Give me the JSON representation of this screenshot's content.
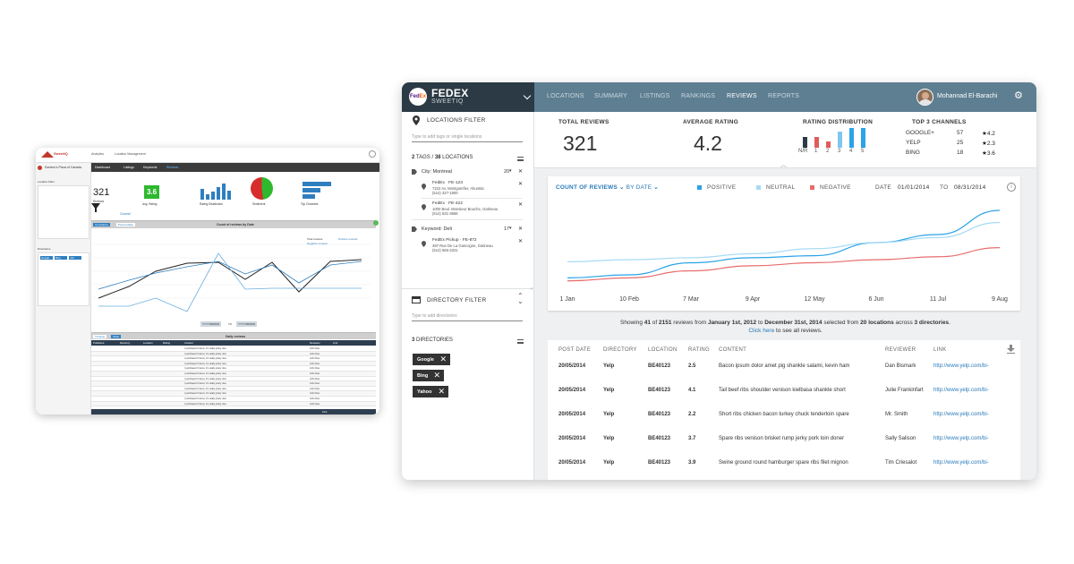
{
  "legacy": {
    "brand": "SweetIQ",
    "header_links": [
      "Analytics",
      "Location Management"
    ],
    "client_name": "Domino's Pizza of Canada",
    "nav": [
      "Dashboard",
      "Listings",
      "Keywords",
      "Reviews"
    ],
    "location_filter_label": "Location Filter",
    "directories_label": "Directories",
    "directory_chips": [
      "Google",
      "Bing",
      "Yah"
    ],
    "kpis": {
      "reviews_value": "321",
      "reviews_label": "Reviews",
      "channel_label": "Channel",
      "avg_rating_value": "3.6",
      "avg_rating_label": "Avg. Rating",
      "distribution_label": "Rating Distribution",
      "sentiment_label": "Sentiment",
      "top_channels_label": "Top Channels"
    },
    "chart_tabs": [
      "Cumulative",
      "Period Value"
    ],
    "chart_title": "Count of reviews by Date",
    "chart_legend": [
      "Total reviews",
      "Positive reviews",
      "Negative reviews"
    ],
    "date_from": "YYYY/MM/DD",
    "date_to_label": "TO",
    "date_to": "YYYY/MM/DD",
    "daily_title": "Daily reviews",
    "table_tabs": [
      "Timeline",
      "Table"
    ],
    "table_headers": [
      "Published",
      "Directory",
      "Location",
      "Rating",
      "Content",
      "Reviewer",
      "Link"
    ],
    "row_content": "I purchased 3 items, it's really pretty nice",
    "row_reviewer": "John Doe",
    "pagination": "First",
    "badge": "V2"
  },
  "app": {
    "brand": {
      "name": "FEDEX",
      "sub": "SWEETIQ",
      "logo_text_a": "Fed",
      "logo_text_b": "Ex"
    },
    "nav": [
      {
        "label": "LOCATIONS"
      },
      {
        "label": "SUMMARY"
      },
      {
        "label": "LISTINGS"
      },
      {
        "label": "RANKINGS"
      },
      {
        "label": "REVIEWS"
      },
      {
        "label": "REPORTS"
      }
    ],
    "user": "Mohannad El-Barachi",
    "locations_filter": {
      "title": "LOCATIONS FILTER",
      "placeholder": "Type to add tags or single locations",
      "summary_count_tags": "2",
      "summary_tags": "TAGS",
      "summary_sep": "/",
      "summary_count_locations": "38",
      "summary_locations": "LOCATIONS",
      "groups": [
        {
          "tag": "City: Montreal",
          "count": "20",
          "items": [
            {
              "name": "FedEx · FE-123",
              "address": "7222 Av. Montgomfier, Ahuntsic",
              "phone": "(514) 427-1900"
            },
            {
              "name": "FedEx · FE-422",
              "address": "1000 Boul. Monsieur Bouche, Gatineau",
              "phone": "(514) 531-3666"
            }
          ]
        },
        {
          "tag": "Keyword: Deli",
          "count": "17",
          "items": [
            {
              "name": "FedEx Pickup · FE-872",
              "address": "487 Rue De La Gascogne, Gatineau",
              "phone": "(514) 665-2321"
            }
          ]
        }
      ]
    },
    "directory_filter": {
      "title": "DIRECTORY FILTER",
      "placeholder": "Type to add directories",
      "count": "3",
      "label": "DIRECTORIES",
      "chips": [
        "Google",
        "Bing",
        "Yahoo"
      ]
    },
    "kpis": {
      "total_reviews_label": "TOTAL REVIEWS",
      "total_reviews": "321",
      "avg_rating_label": "AVERAGE RATING",
      "avg_rating": "4.2",
      "distribution_label": "RATING DISTRIBUTION",
      "distribution_axis": [
        "N/R",
        "1",
        "2",
        "3",
        "4",
        "5"
      ],
      "distribution_values": [
        0.55,
        0.55,
        0.3,
        0.8,
        1.0,
        1.0
      ],
      "distribution_colors": [
        "#2b3a45",
        "#e05b5b",
        "#e05b5b",
        "#7fc6ef",
        "#2aa3e8",
        "#2aa3e8"
      ],
      "top_channels_label": "TOP 3 CHANNELS",
      "channels": [
        {
          "name": "GOOGLE+",
          "count": "57",
          "rating": "★4.2"
        },
        {
          "name": "YELP",
          "count": "25",
          "rating": "★2.3"
        },
        {
          "name": "BING",
          "count": "18",
          "rating": "★3.6"
        }
      ]
    },
    "chart": {
      "title_a": "COUNT OF REVIEWS",
      "title_b": "BY DATE",
      "legend": [
        {
          "label": "POSITIVE",
          "color": "#2aa3e8"
        },
        {
          "label": "NEUTRAL",
          "color": "#a7daf6"
        },
        {
          "label": "NEGATIVE",
          "color": "#e86c6c"
        }
      ],
      "date_label": "DATE",
      "date_from": "01/01/2014",
      "date_to_label": "TO",
      "date_to": "08/31/2014"
    },
    "summary": {
      "t1": "Showing ",
      "shown": "41",
      "t2": " of ",
      "total": "2151",
      "t3": " reviews from ",
      "from": "January 1st, 2012",
      "t4": " to ",
      "to": "December 31st, 2014",
      "t5": " selected from ",
      "locations": "20 locations",
      "t6": " across ",
      "dirs": "3 directories",
      "t7": ".",
      "click": "Click here",
      "t8": " to see all reviews."
    },
    "table": {
      "headers": [
        "POST DATE",
        "DIRECTORY",
        "LOCATION",
        "RATING",
        "CONTENT",
        "REVIEWER",
        "LINK"
      ],
      "rows": [
        {
          "date": "20/05/2014",
          "dir": "Yelp",
          "loc": "BE40123",
          "rating": "2.5",
          "content": "Bacon ipsum dolor amet pig shankle salami, kevin ham",
          "reviewer": "Dan Bismark",
          "link": "http://www.yelp.com/bi-"
        },
        {
          "date": "20/05/2014",
          "dir": "Yelp",
          "loc": "BE40123",
          "rating": "4.1",
          "content": "Tail beef ribs shoulder venison kielbasa shankle short",
          "reviewer": "Julie Frankinfart",
          "link": "http://www.yelp.com/bi-"
        },
        {
          "date": "20/05/2014",
          "dir": "Yelp",
          "loc": "BE40123",
          "rating": "2.2",
          "content": "Short ribs chicken bacon turkey chuck tenderloin spare",
          "reviewer": "Mr. Smith",
          "link": "http://www.yelp.com/bi-"
        },
        {
          "date": "20/05/2014",
          "dir": "Yelp",
          "loc": "BE40123",
          "rating": "3.7",
          "content": "Spare ribs venison brisket rump jerky pork loin doner",
          "reviewer": "Sally Salison",
          "link": "http://www.yelp.com/bi-"
        },
        {
          "date": "20/05/2014",
          "dir": "Yelp",
          "loc": "BE40123",
          "rating": "3.9",
          "content": "Swine ground round hamburger spare ribs filet mignon",
          "reviewer": "Tim Criesalot",
          "link": "http://www.yelp.com/bi-"
        }
      ]
    }
  },
  "chart_data": {
    "type": "line",
    "x": [
      "1 Jan",
      "10 Feb",
      "7 Mar",
      "9 Apr",
      "12 May",
      "6 Jun",
      "11 Jul",
      "9 Aug"
    ],
    "series": [
      {
        "name": "POSITIVE",
        "values": [
          5,
          8,
          20,
          25,
          27,
          40,
          48,
          72
        ]
      },
      {
        "name": "NEUTRAL",
        "values": [
          21,
          23,
          25,
          29,
          34,
          40,
          45,
          60
        ]
      },
      {
        "name": "NEGATIVE",
        "values": [
          2,
          5,
          12,
          17,
          20,
          23,
          26,
          35
        ]
      }
    ],
    "ylim": [
      0,
      80
    ],
    "grid": false
  }
}
